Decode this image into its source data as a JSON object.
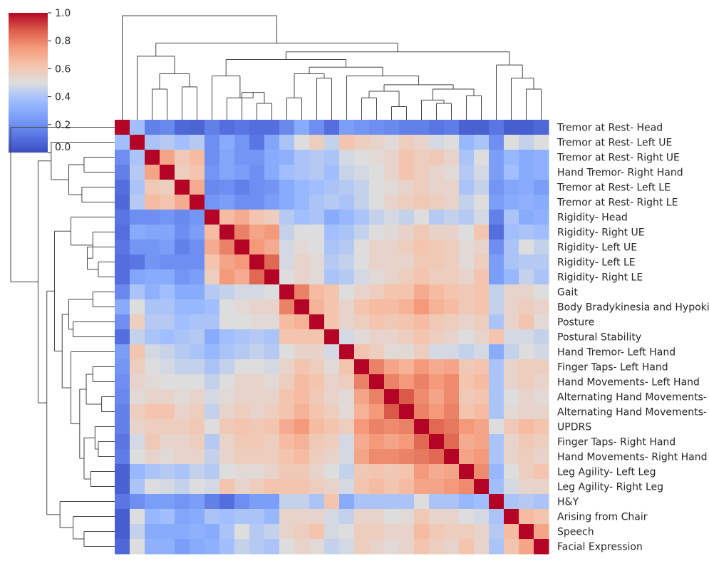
{
  "chart_data": {
    "type": "heatmap",
    "variant": "clustermap",
    "colormap": "coolwarm",
    "vmin": 0.0,
    "vmax": 1.0,
    "colorbar": {
      "ticks": [
        "1.0",
        "0.8",
        "0.6",
        "0.4",
        "0.2",
        "0.0"
      ],
      "placement": "top-left"
    },
    "row_labels": [
      "Tremor at Rest- Head",
      "Tremor at Rest- Left UE",
      "Tremor at Rest- Right UE",
      "Hand Tremor- Right Hand",
      "Tremor at Rest- Left LE",
      "Tremor at Rest- Right LE",
      "Rigidity- Head",
      "Rigidity- Right UE",
      "Rigidity- Left UE",
      "Rigidity- Left LE",
      "Rigidity- Right LE",
      "Gait",
      "Body Bradykinesia and Hypokinesia",
      "Posture",
      "Postural Stability",
      "Hand Tremor- Left Hand",
      "Finger Taps- Left Hand",
      "Hand Movements- Left Hand",
      "Alternating Hand Movements- Left Hand",
      "Alternating Hand Movements- Right Hand",
      "UPDRS",
      "Finger Taps- Right Hand",
      "Hand Movements- Right Hand",
      "Leg Agility- Left Leg",
      "Leg Agility- Right Leg",
      "H&Y",
      "Arising from Chair",
      "Speech",
      "Facial Expression"
    ],
    "values": [
      [
        1.0,
        0.38,
        0.15,
        0.18,
        0.08,
        0.07,
        0.15,
        0.1,
        0.12,
        0.1,
        0.1,
        0.18,
        0.3,
        0.2,
        0.1,
        0.25,
        0.22,
        0.2,
        0.18,
        0.15,
        0.15,
        0.12,
        0.14,
        0.06,
        0.06,
        0.12,
        0.05,
        0.05,
        0.08
      ],
      [
        0.38,
        1.0,
        0.4,
        0.42,
        0.38,
        0.42,
        0.2,
        0.3,
        0.22,
        0.12,
        0.28,
        0.4,
        0.5,
        0.58,
        0.45,
        0.62,
        0.58,
        0.55,
        0.52,
        0.58,
        0.55,
        0.48,
        0.5,
        0.35,
        0.4,
        0.2,
        0.5,
        0.45,
        0.5
      ],
      [
        0.2,
        0.4,
        1.0,
        0.72,
        0.6,
        0.65,
        0.2,
        0.28,
        0.22,
        0.22,
        0.3,
        0.32,
        0.4,
        0.42,
        0.4,
        0.48,
        0.5,
        0.52,
        0.55,
        0.62,
        0.58,
        0.6,
        0.55,
        0.4,
        0.5,
        0.25,
        0.35,
        0.3,
        0.32
      ],
      [
        0.15,
        0.42,
        0.72,
        1.0,
        0.58,
        0.62,
        0.22,
        0.28,
        0.25,
        0.2,
        0.3,
        0.38,
        0.4,
        0.42,
        0.38,
        0.46,
        0.48,
        0.5,
        0.55,
        0.62,
        0.58,
        0.55,
        0.52,
        0.42,
        0.48,
        0.25,
        0.38,
        0.3,
        0.32
      ],
      [
        0.1,
        0.4,
        0.6,
        0.58,
        1.0,
        0.7,
        0.18,
        0.2,
        0.15,
        0.2,
        0.22,
        0.3,
        0.35,
        0.38,
        0.4,
        0.42,
        0.45,
        0.5,
        0.52,
        0.55,
        0.58,
        0.55,
        0.55,
        0.4,
        0.45,
        0.22,
        0.28,
        0.3,
        0.25
      ],
      [
        0.08,
        0.42,
        0.65,
        0.62,
        0.7,
        1.0,
        0.22,
        0.25,
        0.2,
        0.2,
        0.25,
        0.3,
        0.35,
        0.4,
        0.42,
        0.4,
        0.45,
        0.5,
        0.55,
        0.58,
        0.6,
        0.58,
        0.55,
        0.45,
        0.5,
        0.25,
        0.3,
        0.32,
        0.3
      ],
      [
        0.12,
        0.2,
        0.2,
        0.22,
        0.18,
        0.22,
        1.0,
        0.65,
        0.7,
        0.62,
        0.58,
        0.42,
        0.38,
        0.4,
        0.3,
        0.35,
        0.4,
        0.45,
        0.48,
        0.45,
        0.5,
        0.42,
        0.45,
        0.42,
        0.48,
        0.15,
        0.4,
        0.3,
        0.32
      ],
      [
        0.1,
        0.3,
        0.28,
        0.28,
        0.2,
        0.25,
        0.65,
        1.0,
        0.8,
        0.72,
        0.75,
        0.45,
        0.5,
        0.5,
        0.38,
        0.4,
        0.45,
        0.5,
        0.52,
        0.55,
        0.6,
        0.55,
        0.55,
        0.5,
        0.62,
        0.1,
        0.38,
        0.4,
        0.38
      ],
      [
        0.12,
        0.22,
        0.22,
        0.25,
        0.15,
        0.2,
        0.7,
        0.8,
        1.0,
        0.75,
        0.7,
        0.48,
        0.52,
        0.5,
        0.4,
        0.42,
        0.5,
        0.55,
        0.55,
        0.58,
        0.62,
        0.6,
        0.58,
        0.52,
        0.55,
        0.2,
        0.4,
        0.5,
        0.45
      ],
      [
        0.1,
        0.12,
        0.22,
        0.2,
        0.2,
        0.2,
        0.62,
        0.72,
        0.75,
        1.0,
        0.85,
        0.48,
        0.55,
        0.52,
        0.42,
        0.45,
        0.5,
        0.55,
        0.55,
        0.55,
        0.6,
        0.6,
        0.58,
        0.52,
        0.58,
        0.25,
        0.4,
        0.42,
        0.42
      ],
      [
        0.1,
        0.28,
        0.3,
        0.3,
        0.22,
        0.25,
        0.58,
        0.75,
        0.7,
        0.85,
        1.0,
        0.5,
        0.55,
        0.52,
        0.4,
        0.42,
        0.48,
        0.52,
        0.55,
        0.58,
        0.62,
        0.58,
        0.58,
        0.55,
        0.62,
        0.25,
        0.35,
        0.45,
        0.4
      ],
      [
        0.18,
        0.4,
        0.32,
        0.38,
        0.3,
        0.3,
        0.42,
        0.45,
        0.48,
        0.48,
        0.5,
        1.0,
        0.8,
        0.65,
        0.62,
        0.5,
        0.55,
        0.58,
        0.62,
        0.62,
        0.7,
        0.65,
        0.62,
        0.6,
        0.62,
        0.45,
        0.55,
        0.55,
        0.5
      ],
      [
        0.3,
        0.5,
        0.4,
        0.4,
        0.35,
        0.35,
        0.38,
        0.5,
        0.52,
        0.55,
        0.55,
        0.8,
        1.0,
        0.68,
        0.62,
        0.55,
        0.62,
        0.65,
        0.65,
        0.68,
        0.75,
        0.68,
        0.65,
        0.6,
        0.62,
        0.45,
        0.55,
        0.58,
        0.55
      ],
      [
        0.2,
        0.58,
        0.42,
        0.42,
        0.38,
        0.4,
        0.4,
        0.5,
        0.5,
        0.52,
        0.52,
        0.65,
        0.68,
        1.0,
        0.62,
        0.55,
        0.58,
        0.62,
        0.6,
        0.62,
        0.65,
        0.6,
        0.58,
        0.55,
        0.58,
        0.4,
        0.55,
        0.62,
        0.52
      ],
      [
        0.1,
        0.45,
        0.4,
        0.38,
        0.4,
        0.42,
        0.3,
        0.38,
        0.4,
        0.42,
        0.4,
        0.62,
        0.62,
        0.62,
        1.0,
        0.48,
        0.52,
        0.55,
        0.55,
        0.58,
        0.62,
        0.58,
        0.55,
        0.5,
        0.55,
        0.62,
        0.48,
        0.48,
        0.45
      ],
      [
        0.25,
        0.62,
        0.48,
        0.46,
        0.42,
        0.4,
        0.35,
        0.4,
        0.42,
        0.45,
        0.42,
        0.5,
        0.55,
        0.55,
        0.48,
        1.0,
        0.62,
        0.58,
        0.52,
        0.52,
        0.58,
        0.48,
        0.48,
        0.45,
        0.48,
        0.3,
        0.45,
        0.5,
        0.48
      ],
      [
        0.22,
        0.58,
        0.5,
        0.48,
        0.45,
        0.45,
        0.4,
        0.45,
        0.5,
        0.5,
        0.48,
        0.55,
        0.62,
        0.58,
        0.52,
        0.62,
        1.0,
        0.8,
        0.72,
        0.68,
        0.75,
        0.7,
        0.72,
        0.6,
        0.62,
        0.4,
        0.55,
        0.58,
        0.58
      ],
      [
        0.2,
        0.55,
        0.52,
        0.5,
        0.5,
        0.5,
        0.45,
        0.5,
        0.55,
        0.55,
        0.52,
        0.58,
        0.65,
        0.62,
        0.55,
        0.58,
        0.8,
        1.0,
        0.8,
        0.75,
        0.8,
        0.75,
        0.78,
        0.62,
        0.65,
        0.4,
        0.55,
        0.58,
        0.55
      ],
      [
        0.18,
        0.52,
        0.55,
        0.55,
        0.52,
        0.55,
        0.48,
        0.52,
        0.55,
        0.55,
        0.55,
        0.62,
        0.65,
        0.6,
        0.55,
        0.52,
        0.72,
        0.8,
        1.0,
        0.88,
        0.78,
        0.72,
        0.78,
        0.6,
        0.62,
        0.4,
        0.5,
        0.55,
        0.52
      ],
      [
        0.15,
        0.58,
        0.62,
        0.62,
        0.55,
        0.58,
        0.45,
        0.55,
        0.58,
        0.55,
        0.58,
        0.62,
        0.68,
        0.62,
        0.58,
        0.52,
        0.68,
        0.75,
        0.88,
        1.0,
        0.8,
        0.75,
        0.8,
        0.62,
        0.65,
        0.4,
        0.52,
        0.55,
        0.55
      ],
      [
        0.15,
        0.55,
        0.58,
        0.58,
        0.58,
        0.6,
        0.5,
        0.6,
        0.62,
        0.6,
        0.62,
        0.7,
        0.75,
        0.65,
        0.62,
        0.58,
        0.75,
        0.8,
        0.78,
        0.8,
        1.0,
        0.85,
        0.82,
        0.75,
        0.72,
        0.5,
        0.6,
        0.65,
        0.62
      ],
      [
        0.12,
        0.48,
        0.6,
        0.55,
        0.55,
        0.58,
        0.42,
        0.55,
        0.6,
        0.6,
        0.58,
        0.65,
        0.68,
        0.6,
        0.58,
        0.48,
        0.7,
        0.75,
        0.72,
        0.75,
        0.85,
        1.0,
        0.85,
        0.7,
        0.72,
        0.4,
        0.55,
        0.6,
        0.58
      ],
      [
        0.14,
        0.5,
        0.55,
        0.52,
        0.55,
        0.55,
        0.45,
        0.55,
        0.58,
        0.58,
        0.58,
        0.62,
        0.65,
        0.58,
        0.55,
        0.48,
        0.72,
        0.78,
        0.78,
        0.8,
        0.82,
        0.85,
        1.0,
        0.72,
        0.75,
        0.4,
        0.55,
        0.58,
        0.55
      ],
      [
        0.06,
        0.35,
        0.4,
        0.42,
        0.4,
        0.45,
        0.42,
        0.5,
        0.52,
        0.52,
        0.55,
        0.6,
        0.6,
        0.55,
        0.5,
        0.45,
        0.6,
        0.62,
        0.6,
        0.62,
        0.75,
        0.7,
        0.72,
        1.0,
        0.78,
        0.35,
        0.5,
        0.58,
        0.62
      ],
      [
        0.06,
        0.4,
        0.5,
        0.48,
        0.45,
        0.5,
        0.48,
        0.62,
        0.55,
        0.58,
        0.62,
        0.62,
        0.62,
        0.58,
        0.55,
        0.48,
        0.62,
        0.65,
        0.62,
        0.65,
        0.72,
        0.72,
        0.75,
        0.78,
        1.0,
        0.38,
        0.48,
        0.55,
        0.55
      ],
      [
        0.12,
        0.2,
        0.25,
        0.25,
        0.22,
        0.25,
        0.15,
        0.1,
        0.2,
        0.25,
        0.25,
        0.45,
        0.45,
        0.4,
        0.62,
        0.3,
        0.4,
        0.4,
        0.4,
        0.4,
        0.5,
        0.4,
        0.4,
        0.35,
        0.38,
        1.0,
        0.4,
        0.42,
        0.4
      ],
      [
        0.05,
        0.5,
        0.35,
        0.38,
        0.28,
        0.3,
        0.4,
        0.38,
        0.4,
        0.4,
        0.35,
        0.55,
        0.55,
        0.55,
        0.48,
        0.45,
        0.55,
        0.55,
        0.5,
        0.52,
        0.6,
        0.55,
        0.55,
        0.5,
        0.48,
        0.4,
        1.0,
        0.65,
        0.62
      ],
      [
        0.05,
        0.45,
        0.3,
        0.3,
        0.3,
        0.32,
        0.3,
        0.4,
        0.5,
        0.42,
        0.45,
        0.55,
        0.58,
        0.62,
        0.48,
        0.5,
        0.58,
        0.58,
        0.55,
        0.55,
        0.65,
        0.6,
        0.58,
        0.58,
        0.55,
        0.42,
        0.65,
        1.0,
        0.72
      ],
      [
        0.08,
        0.5,
        0.32,
        0.32,
        0.25,
        0.3,
        0.32,
        0.38,
        0.45,
        0.42,
        0.4,
        0.5,
        0.55,
        0.52,
        0.45,
        0.48,
        0.58,
        0.55,
        0.52,
        0.55,
        0.62,
        0.58,
        0.55,
        0.62,
        0.55,
        0.4,
        0.62,
        0.72,
        1.0
      ]
    ],
    "row_dendrogram": [
      {
        "a": 2,
        "b": 3,
        "h": 0.28
      },
      {
        "a": 4,
        "b": 5,
        "h": 0.3
      },
      {
        "a": "n0",
        "b": "n1",
        "h": 0.42
      },
      {
        "a": 1,
        "b": "n2",
        "h": 0.58
      },
      {
        "a": 9,
        "b": 10,
        "h": 0.15
      },
      {
        "a": 8,
        "b": "n4",
        "h": 0.25
      },
      {
        "a": 7,
        "b": "n5",
        "h": 0.2
      },
      {
        "a": 6,
        "b": "n6",
        "h": 0.4
      },
      {
        "a": 11,
        "b": 12,
        "h": 0.2
      },
      {
        "a": 13,
        "b": 14,
        "h": 0.38
      },
      {
        "a": "n8",
        "b": "n9",
        "h": 0.42
      },
      {
        "a": 18,
        "b": 19,
        "h": 0.12
      },
      {
        "a": 16,
        "b": 17,
        "h": 0.2
      },
      {
        "a": "n12",
        "b": "n11",
        "h": 0.26
      },
      {
        "a": 21,
        "b": 22,
        "h": 0.15
      },
      {
        "a": 20,
        "b": "n14",
        "h": 0.18
      },
      {
        "a": 23,
        "b": 24,
        "h": 0.22
      },
      {
        "a": "n15",
        "b": "n16",
        "h": 0.28
      },
      {
        "a": "n13",
        "b": "n17",
        "h": 0.32
      },
      {
        "a": 15,
        "b": "n18",
        "h": 0.4
      },
      {
        "a": "n10",
        "b": "n19",
        "h": 0.48
      },
      {
        "a": "n7",
        "b": "n20",
        "h": 0.55
      },
      {
        "a": 27,
        "b": 28,
        "h": 0.28
      },
      {
        "a": 26,
        "b": "n22",
        "h": 0.38
      },
      {
        "a": 25,
        "b": "n23",
        "h": 0.5
      },
      {
        "a": "n21",
        "b": "n24",
        "h": 0.62
      },
      {
        "a": "n3",
        "b": "n25",
        "h": 0.7
      },
      {
        "a": 0,
        "b": "n26",
        "h": 0.95
      }
    ]
  }
}
